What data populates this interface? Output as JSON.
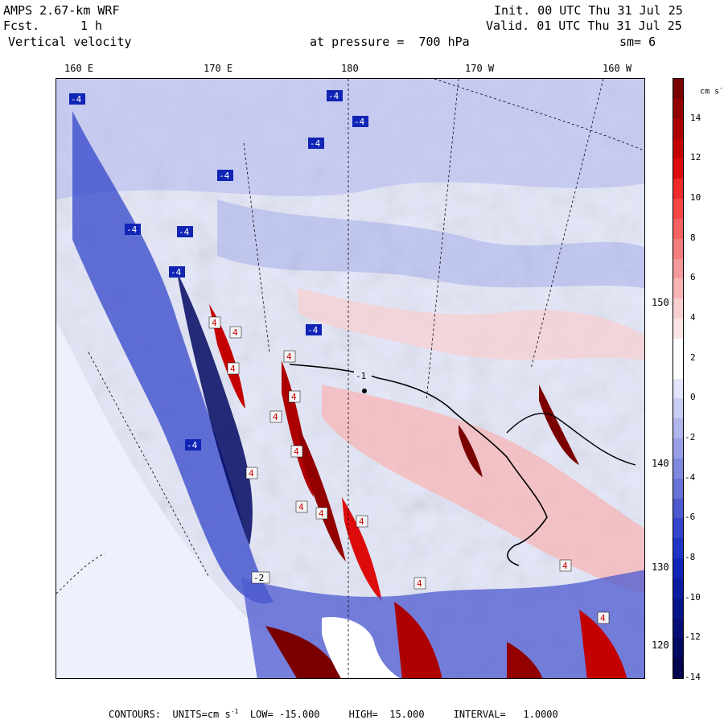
{
  "header": {
    "model": "AMPS 2.67-km WRF",
    "forecast_label": "Fcst.",
    "forecast_value": "1 h",
    "variable": "Vertical velocity",
    "level": "at pressure =  700 hPa",
    "init": "Init. 00 UTC Thu 31 Jul 25",
    "valid": "Valid. 01 UTC Thu 31 Jul 25",
    "smoothing": "sm= 6"
  },
  "longitude_labels": [
    "160 E",
    "170 E",
    "180",
    "170 W",
    "160 W"
  ],
  "latitude_labels": [
    "150 W",
    "140 W",
    "130 W",
    "120 W"
  ],
  "colorbar": {
    "units": "cm s",
    "units_exp": "-1",
    "ticks": [
      "14",
      "12",
      "10",
      "8",
      "6",
      "4",
      "2",
      "0",
      "-2",
      "-4",
      "-6",
      "-8",
      "-10",
      "-12",
      "-14"
    ],
    "colors": [
      "#7a0000",
      "#930000",
      "#ad0000",
      "#c40000",
      "#dc0c0c",
      "#ee2a2a",
      "#f64646",
      "#f56262",
      "#f57d7d",
      "#f59a9a",
      "#f7b5b5",
      "#f8cfcf",
      "#fbe6e6",
      "#ffffff",
      "#ffffff",
      "#e3e6fb",
      "#c9cef3",
      "#b0b6ec",
      "#9aa1e6",
      "#8089dd",
      "#6672d6",
      "#4d5ad0",
      "#3345ca",
      "#1f35c3",
      "#1024b5",
      "#0b1ca0",
      "#07158b",
      "#040e76",
      "#020962",
      "#01054e"
    ]
  },
  "contour_labels": [
    "-4",
    "-4",
    "-4",
    "-4",
    "-4",
    "-4",
    "-4",
    "-4",
    "-4",
    "-4",
    "4",
    "4",
    "4",
    "4",
    "4",
    "4",
    "4",
    "4",
    "4",
    "4",
    "4",
    "4",
    "4",
    "4",
    "-2",
    "-1"
  ],
  "footer": {
    "contours": "CONTOURS:",
    "units_prefix": "UNITS=cm s",
    "units_exp": "-1",
    "low": "LOW= -15.000",
    "high": "HIGH=  15.000",
    "interval": "INTERVAL=   1.0000"
  }
}
